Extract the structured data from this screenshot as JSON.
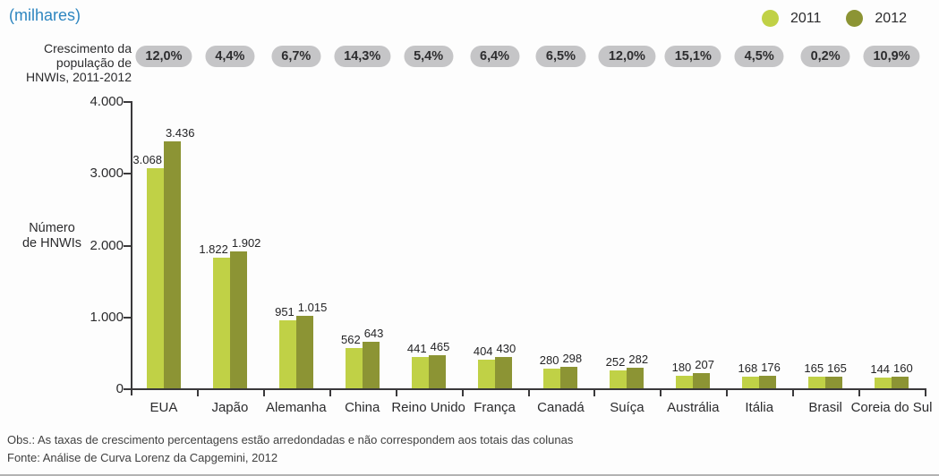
{
  "title": "(milhares)",
  "growth_row_label": "Crescimento da\npopulação de\nHNWIs, 2011-2012",
  "ylabel": "Número\nde HNWIs",
  "legend": {
    "items": [
      {
        "label": "2011",
        "color": "#c0d146"
      },
      {
        "label": "2012",
        "color": "#8c9434"
      }
    ]
  },
  "footer": {
    "note": "Obs.: As taxas de crescimento percentagens estão arredondadas e não correspondem aos totais das colunas",
    "source": "Fonte: Análise de Curva Lorenz da Capgemini, 2012"
  },
  "chart_data": {
    "type": "bar",
    "title": "(milhares)",
    "ylabel": "Número de HNWIs",
    "categories": [
      "EUA",
      "Japão",
      "Alemanha",
      "China",
      "Reino Unido",
      "França",
      "Canadá",
      "Suíça",
      "Austrália",
      "Itália",
      "Brasil",
      "Coreia do Sul"
    ],
    "series": [
      {
        "name": "2011",
        "color": "#c0d146",
        "values": [
          3068,
          1822,
          951,
          562,
          441,
          404,
          280,
          252,
          180,
          168,
          165,
          144
        ]
      },
      {
        "name": "2012",
        "color": "#8c9434",
        "values": [
          3436,
          1902,
          1015,
          643,
          465,
          430,
          298,
          282,
          207,
          176,
          165,
          160
        ]
      }
    ],
    "growth_labels": [
      "12,0%",
      "4,4%",
      "6,7%",
      "14,3%",
      "5,4%",
      "6,4%",
      "6,5%",
      "12,0%",
      "15,1%",
      "4,5%",
      "0,2%",
      "10,9%"
    ],
    "ylim": [
      0,
      4000
    ],
    "ytick_step": 1000,
    "grid": false,
    "legend_position": "top-right",
    "number_format": "pt-thousands-dot"
  },
  "colors": {
    "accent_blue": "#2e86c0",
    "bar_2011": "#c0d146",
    "bar_2012": "#8c9434",
    "pill_bg": "#c5c5c7",
    "axis": "#3a393b"
  }
}
